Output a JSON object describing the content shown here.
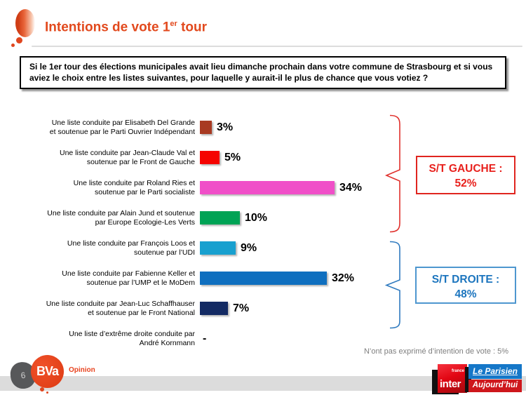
{
  "header": {
    "title_prefix": "Intentions de vote 1",
    "title_sup": "er",
    "title_suffix": " tour"
  },
  "question": "Si le 1er tour des élections municipales avait lieu dimanche prochain dans votre commune de Strasbourg et si vous aviez le choix entre les listes suivantes, pour laquelle y aurait-il le plus de chance que vous votiez ?",
  "chart_data": {
    "type": "bar",
    "orientation": "horizontal",
    "title": "Intentions de vote 1er tour",
    "categories": [
      "Une liste conduite par Elisabeth Del Grande\net soutenue par le Parti Ouvrier Indépendant",
      "Une liste conduite par Jean-Claude Val et\nsoutenue par le Front de Gauche",
      "Une liste conduite par Roland Ries et\nsoutenue par le Parti socialiste",
      "Une liste conduite par Alain Jund et soutenue\npar Europe Ecologie-Les Verts",
      "Une liste conduite par François Loos et\nsoutenue par l’UDI",
      "Une liste conduite par Fabienne Keller et\nsoutenue par l’UMP et le MoDem",
      "Une liste conduite par Jean-Luc Schaffhauser\net soutenue par le Front National",
      "Une liste d’extrême droite conduite par\nAndré Kornmann"
    ],
    "values": [
      3,
      5,
      34,
      10,
      9,
      32,
      7,
      null
    ],
    "value_labels": [
      "3%",
      "5%",
      "34%",
      "10%",
      "9%",
      "32%",
      "7%",
      "-"
    ],
    "bar_colors": [
      "#a83a22",
      "#f50300",
      "#f04fc8",
      "#00a355",
      "#18a0cf",
      "#0f6fbf",
      "#132a63",
      null
    ],
    "xlim": [
      0,
      35
    ],
    "grid": false,
    "legend": "none"
  },
  "summaries": [
    {
      "label": "S/T GAUCHE :",
      "value": "52%",
      "text_color": "#e8211d",
      "border_color": "#e0251f",
      "brace_color": "#e0302c"
    },
    {
      "label": "S/T DROITE :",
      "value": "48%",
      "text_color": "#1c75be",
      "border_color": "#4e97cf",
      "brace_color": "#2f7abf"
    }
  ],
  "note": "N’ont pas exprimé d’intention de vote : 5%",
  "footer": {
    "page_number": "6",
    "bva_text": "BVa",
    "bva_sub": "Opinion",
    "france_inter_top": "france",
    "france_inter_main": "inter",
    "parisien_top": "Le Parisien",
    "parisien_bottom": "Aujourd’hui"
  }
}
